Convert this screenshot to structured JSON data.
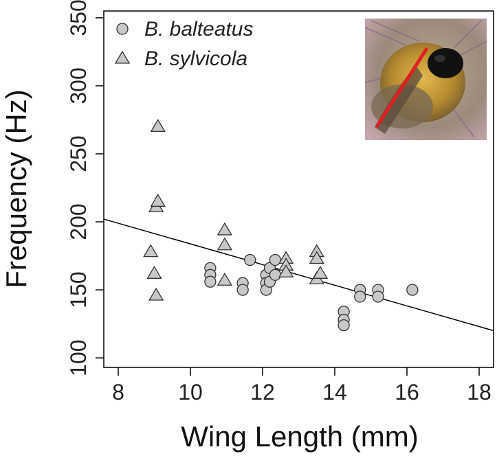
{
  "chart_data": {
    "type": "scatter",
    "title": "",
    "xlabel": "Wing Length (mm)",
    "ylabel": "Frequency (Hz)",
    "xlim": [
      7.6,
      18.4
    ],
    "ylim": [
      93,
      355
    ],
    "xticks": [
      8,
      10,
      12,
      14,
      16,
      18
    ],
    "yticks": [
      100,
      150,
      200,
      250,
      300,
      350
    ],
    "grid": false,
    "legend_position": "top-left",
    "series": [
      {
        "name": "B. balteatus",
        "marker": "circle",
        "color": "#c8c8c8",
        "points": [
          [
            10.55,
            166
          ],
          [
            10.55,
            161
          ],
          [
            10.55,
            156
          ],
          [
            11.45,
            155
          ],
          [
            11.45,
            150
          ],
          [
            11.65,
            172
          ],
          [
            12.1,
            161
          ],
          [
            12.1,
            155
          ],
          [
            12.1,
            150
          ],
          [
            12.2,
            166
          ],
          [
            12.2,
            156
          ],
          [
            12.35,
            172
          ],
          [
            12.35,
            161
          ],
          [
            14.25,
            134
          ],
          [
            14.25,
            128
          ],
          [
            14.25,
            124
          ],
          [
            14.7,
            150
          ],
          [
            14.7,
            145
          ],
          [
            15.2,
            150
          ],
          [
            15.2,
            145
          ],
          [
            16.15,
            150
          ]
        ]
      },
      {
        "name": "B. sylvicola",
        "marker": "triangle",
        "color": "#c8c8c8",
        "points": [
          [
            8.9,
            178
          ],
          [
            9.0,
            162
          ],
          [
            9.05,
            146
          ],
          [
            9.05,
            211
          ],
          [
            9.1,
            215
          ],
          [
            9.1,
            270
          ],
          [
            10.95,
            194
          ],
          [
            10.95,
            183
          ],
          [
            10.95,
            157
          ],
          [
            12.65,
            173
          ],
          [
            12.65,
            168
          ],
          [
            12.65,
            163
          ],
          [
            13.5,
            178
          ],
          [
            13.5,
            173
          ],
          [
            13.5,
            158
          ],
          [
            13.6,
            162
          ]
        ]
      }
    ],
    "trendline": {
      "x": [
        7.6,
        18.4
      ],
      "y": [
        202,
        120
      ]
    },
    "inset_photo": "bumblebee photo with red wing-length measurement line"
  }
}
